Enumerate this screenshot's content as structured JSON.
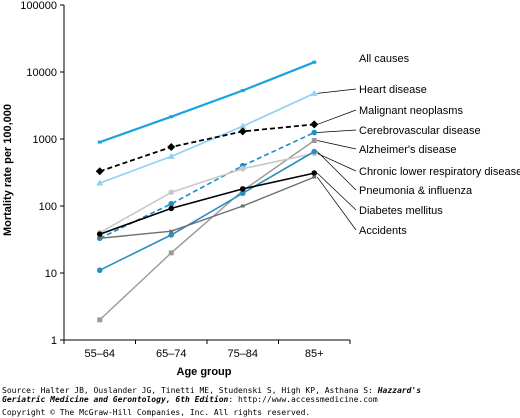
{
  "chart_data": {
    "type": "line",
    "title": "",
    "xlabel": "Age group",
    "ylabel": "Mortality rate per 100,000",
    "yscale": "log",
    "ylim": [
      1,
      100000
    ],
    "yticks": [
      "1",
      "10",
      "100",
      "1000",
      "10000",
      "100000"
    ],
    "categories": [
      "55–64",
      "65–74",
      "75–84",
      "85+"
    ],
    "grid": false,
    "legend": "right, labels at line ends",
    "series": [
      {
        "name": "All causes",
        "values": [
          900,
          2150,
          5300,
          14000
        ],
        "color": "#1aa3e0",
        "dash": "solid",
        "marker": "none",
        "width": 2.2
      },
      {
        "name": "Heart disease",
        "values": [
          220,
          550,
          1550,
          4800
        ],
        "color": "#8fd0f2",
        "dash": "solid",
        "marker": "triangle",
        "width": 1.6
      },
      {
        "name": "Malignant neoplasms",
        "values": [
          330,
          760,
          1300,
          1650
        ],
        "color": "#000000",
        "dash": "dashed",
        "marker": "diamond",
        "width": 1.8
      },
      {
        "name": "Cerebrovascular disease",
        "values": [
          33,
          108,
          400,
          1250
        ],
        "color": "#1a8fc8",
        "dash": "dashed",
        "marker": "circle",
        "width": 1.6
      },
      {
        "name": "Alzheimer's disease",
        "values": [
          2,
          20,
          170,
          950
        ],
        "color": "#9a9a9a",
        "dash": "solid",
        "marker": "square",
        "width": 1.4
      },
      {
        "name": "Chronic lower respiratory diseases",
        "values": [
          40,
          160,
          360,
          610
        ],
        "color": "#c8c8c8",
        "dash": "solid",
        "marker": "circle",
        "width": 1.6
      },
      {
        "name": "Pneumonia & influenza",
        "values": [
          11,
          37,
          155,
          650
        ],
        "color": "#2b8ec0",
        "dash": "solid",
        "marker": "circle",
        "width": 1.6
      },
      {
        "name": "Diabetes mellitus",
        "values": [
          38,
          92,
          180,
          310
        ],
        "color": "#000000",
        "dash": "solid",
        "marker": "circle",
        "width": 1.6
      },
      {
        "name": "Accidents",
        "values": [
          33,
          42,
          100,
          270
        ],
        "color": "#6e6e6e",
        "dash": "solid",
        "marker": "none",
        "width": 1.4
      }
    ]
  },
  "footer": {
    "source_prefix": "Source: Halter JB, Ouslander JG, Tinetti ME, Studenski S, High KP, Asthana S: ",
    "source_title_1": "Hazzard's",
    "source_title_2": "Geriatric Medicine and Gerontology, 6th Edition",
    "source_suffix": ": http://www.accessmedicine.com",
    "copyright": "Copyright © The McGraw-Hill Companies, Inc. All rights reserved."
  }
}
